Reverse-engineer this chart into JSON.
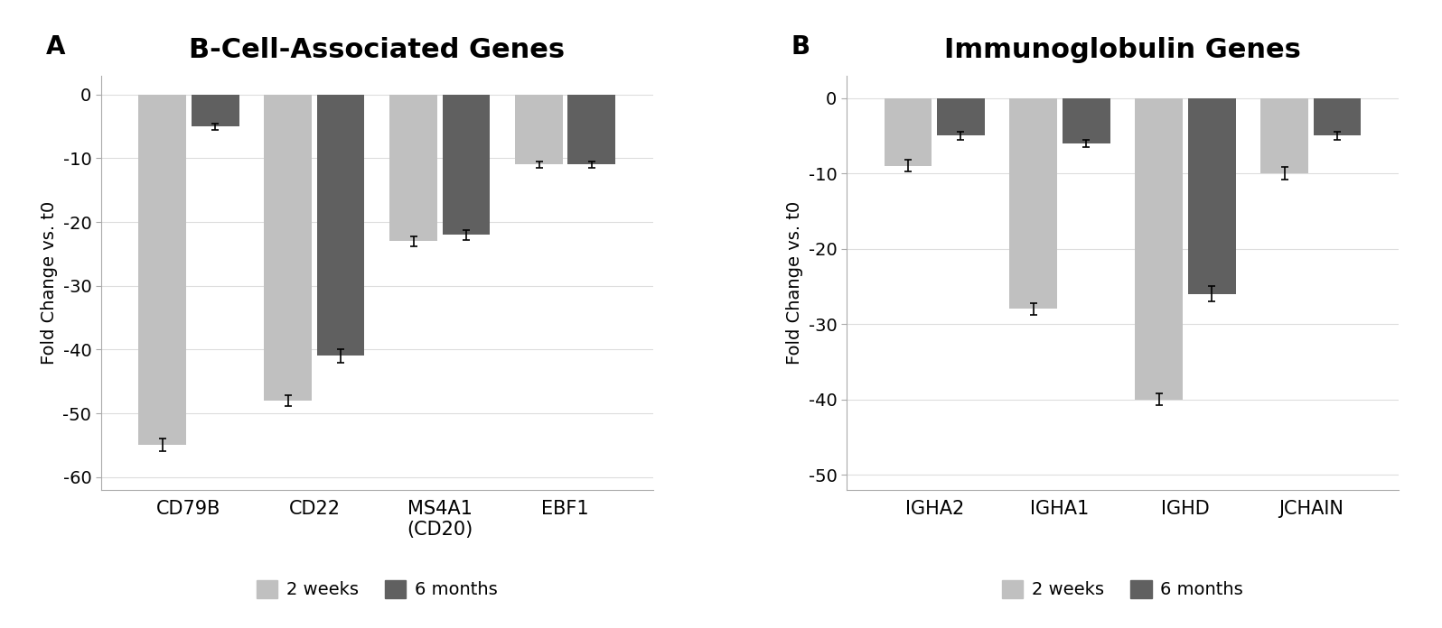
{
  "panel_A": {
    "title": "B-Cell-Associated Genes",
    "categories": [
      "CD79B",
      "CD22",
      "MS4A1\n(CD20)",
      "EBF1"
    ],
    "values_2weeks": [
      -55,
      -48,
      -23,
      -11
    ],
    "values_6months": [
      -5,
      -41,
      -22,
      -11
    ],
    "errors_2weeks": [
      1.0,
      0.8,
      0.8,
      0.5
    ],
    "errors_6months": [
      0.5,
      1.0,
      0.8,
      0.5
    ],
    "ylim": [
      -62,
      3
    ],
    "yticks": [
      0,
      -10,
      -20,
      -30,
      -40,
      -50,
      -60
    ],
    "ylabel": "Fold Change vs. t0"
  },
  "panel_B": {
    "title": "Immunoglobulin Genes",
    "categories": [
      "IGHA2",
      "IGHA1",
      "IGHD",
      "JCHAIN"
    ],
    "values_2weeks": [
      -9,
      -28,
      -40,
      -10
    ],
    "values_6months": [
      -5,
      -6,
      -26,
      -5
    ],
    "errors_2weeks": [
      0.8,
      0.8,
      0.8,
      0.8
    ],
    "errors_6months": [
      0.5,
      0.5,
      1.0,
      0.5
    ],
    "ylim": [
      -52,
      3
    ],
    "yticks": [
      0,
      -10,
      -20,
      -30,
      -40,
      -50
    ],
    "ylabel": "Fold Change vs. t0"
  },
  "color_2weeks": "#c0c0c0",
  "color_6months": "#606060",
  "legend_labels": [
    "2 weeks",
    "6 months"
  ],
  "bar_width": 0.38,
  "bar_gap": 0.04,
  "label_A": "A",
  "label_B": "B",
  "title_fontsize": 22,
  "tick_fontsize": 14,
  "ylabel_fontsize": 14,
  "xlabel_fontsize": 15,
  "legend_fontsize": 14
}
